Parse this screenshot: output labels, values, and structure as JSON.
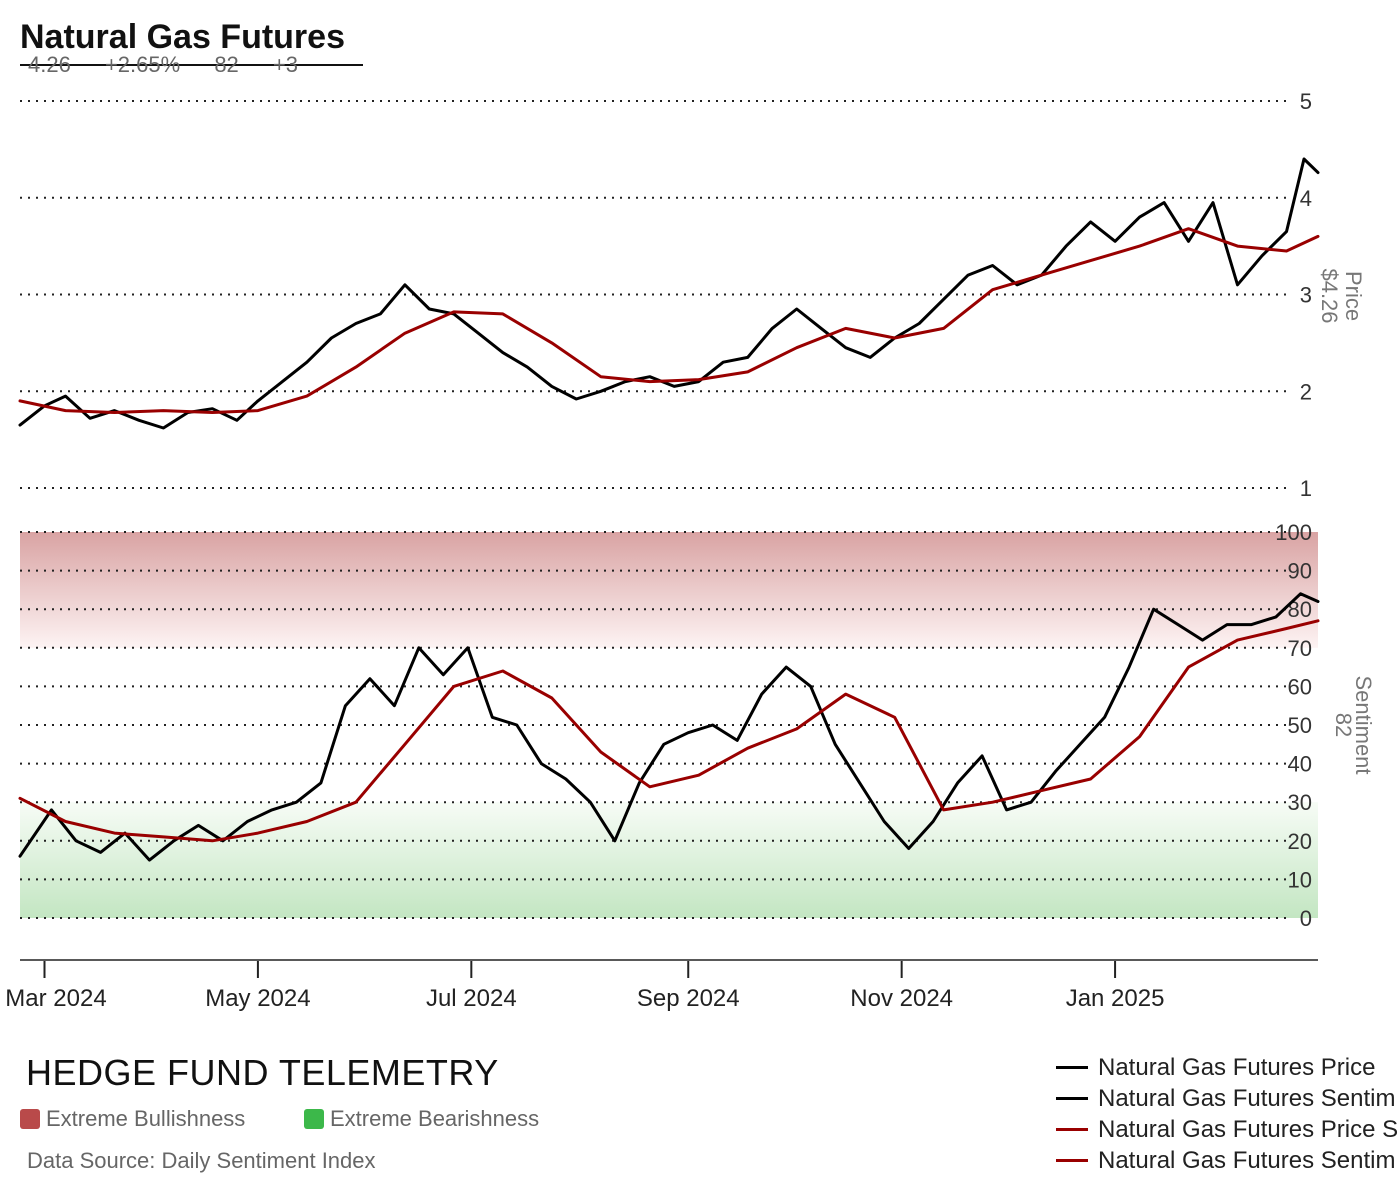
{
  "header": {
    "title": "Natural Gas Futures",
    "stats": [
      "4.26",
      "+2.65%",
      "82",
      "+3"
    ]
  },
  "footer": {
    "brand": "HEDGE FUND TELEMETRY",
    "source": "Data Source: Daily Sentiment Index"
  },
  "zones": [
    {
      "label": "Extreme Bullishness",
      "color": "#b94a4a"
    },
    {
      "label": "Extreme Bearishness",
      "color": "#3cb84a"
    }
  ],
  "chart_data": {
    "type": "line",
    "x_ticks": [
      "Mar 2024",
      "May 2024",
      "Jul 2024",
      "Sep 2024",
      "Nov 2024",
      "Jan 2025"
    ],
    "x_tick_dates": [
      "2024-03-01",
      "2024-05-01",
      "2024-07-01",
      "2024-09-01",
      "2024-11-01",
      "2025-01-01"
    ],
    "x_range": [
      "2024-02-23",
      "2025-02-28"
    ],
    "grid": "dotted horizontal",
    "legend_position": "bottom-right",
    "price_panel": {
      "ylabel": "Price",
      "current_label": "$4.26",
      "ylim": [
        1,
        5
      ],
      "yticks": [
        "1",
        "2",
        "3",
        "4",
        "5"
      ],
      "series": [
        {
          "name": "Natural Gas Futures Price",
          "color": "#000000",
          "points": [
            [
              "2024-02-23",
              1.65
            ],
            [
              "2024-03-01",
              1.85
            ],
            [
              "2024-03-07",
              1.95
            ],
            [
              "2024-03-14",
              1.72
            ],
            [
              "2024-03-21",
              1.8
            ],
            [
              "2024-03-28",
              1.7
            ],
            [
              "2024-04-04",
              1.62
            ],
            [
              "2024-04-11",
              1.78
            ],
            [
              "2024-04-18",
              1.82
            ],
            [
              "2024-04-25",
              1.7
            ],
            [
              "2024-05-01",
              1.9
            ],
            [
              "2024-05-08",
              2.1
            ],
            [
              "2024-05-15",
              2.3
            ],
            [
              "2024-05-22",
              2.55
            ],
            [
              "2024-05-29",
              2.7
            ],
            [
              "2024-06-05",
              2.8
            ],
            [
              "2024-06-12",
              3.1
            ],
            [
              "2024-06-19",
              2.85
            ],
            [
              "2024-06-26",
              2.8
            ],
            [
              "2024-07-03",
              2.6
            ],
            [
              "2024-07-10",
              2.4
            ],
            [
              "2024-07-17",
              2.25
            ],
            [
              "2024-07-24",
              2.05
            ],
            [
              "2024-07-31",
              1.92
            ],
            [
              "2024-08-07",
              2.0
            ],
            [
              "2024-08-14",
              2.1
            ],
            [
              "2024-08-21",
              2.15
            ],
            [
              "2024-08-28",
              2.05
            ],
            [
              "2024-09-04",
              2.1
            ],
            [
              "2024-09-11",
              2.3
            ],
            [
              "2024-09-18",
              2.35
            ],
            [
              "2024-09-25",
              2.65
            ],
            [
              "2024-10-02",
              2.85
            ],
            [
              "2024-10-09",
              2.65
            ],
            [
              "2024-10-16",
              2.45
            ],
            [
              "2024-10-23",
              2.35
            ],
            [
              "2024-10-30",
              2.55
            ],
            [
              "2024-11-06",
              2.7
            ],
            [
              "2024-11-13",
              2.95
            ],
            [
              "2024-11-20",
              3.2
            ],
            [
              "2024-11-27",
              3.3
            ],
            [
              "2024-12-04",
              3.1
            ],
            [
              "2024-12-11",
              3.2
            ],
            [
              "2024-12-18",
              3.5
            ],
            [
              "2024-12-25",
              3.75
            ],
            [
              "2025-01-01",
              3.55
            ],
            [
              "2025-01-08",
              3.8
            ],
            [
              "2025-01-15",
              3.95
            ],
            [
              "2025-01-22",
              3.55
            ],
            [
              "2025-01-29",
              3.95
            ],
            [
              "2025-02-05",
              3.1
            ],
            [
              "2025-02-12",
              3.4
            ],
            [
              "2025-02-19",
              3.65
            ],
            [
              "2025-02-24",
              4.4
            ],
            [
              "2025-02-28",
              4.26
            ]
          ]
        },
        {
          "name": "Natural Gas Futures Price S",
          "color": "#990000",
          "points": [
            [
              "2024-02-23",
              1.9
            ],
            [
              "2024-03-07",
              1.8
            ],
            [
              "2024-03-21",
              1.78
            ],
            [
              "2024-04-04",
              1.8
            ],
            [
              "2024-04-18",
              1.78
            ],
            [
              "2024-05-01",
              1.8
            ],
            [
              "2024-05-15",
              1.95
            ],
            [
              "2024-05-29",
              2.25
            ],
            [
              "2024-06-12",
              2.6
            ],
            [
              "2024-06-26",
              2.82
            ],
            [
              "2024-07-10",
              2.8
            ],
            [
              "2024-07-24",
              2.5
            ],
            [
              "2024-08-07",
              2.15
            ],
            [
              "2024-08-21",
              2.1
            ],
            [
              "2024-09-04",
              2.12
            ],
            [
              "2024-09-18",
              2.2
            ],
            [
              "2024-10-02",
              2.45
            ],
            [
              "2024-10-16",
              2.65
            ],
            [
              "2024-10-30",
              2.55
            ],
            [
              "2024-11-13",
              2.65
            ],
            [
              "2024-11-27",
              3.05
            ],
            [
              "2024-12-11",
              3.2
            ],
            [
              "2024-12-25",
              3.35
            ],
            [
              "2025-01-08",
              3.5
            ],
            [
              "2025-01-22",
              3.68
            ],
            [
              "2025-02-05",
              3.5
            ],
            [
              "2025-02-19",
              3.45
            ],
            [
              "2025-02-28",
              3.6
            ]
          ]
        }
      ]
    },
    "sentiment_panel": {
      "ylabel": "Sentiment",
      "current_label": "82",
      "ylim": [
        0,
        100
      ],
      "yticks": [
        "0",
        "10",
        "20",
        "30",
        "40",
        "50",
        "60",
        "70",
        "80",
        "90",
        "100"
      ],
      "extreme_bullish_band": [
        70,
        100
      ],
      "extreme_bearish_band": [
        0,
        30
      ],
      "series": [
        {
          "name": "Natural Gas Futures Sentim",
          "color": "#000000",
          "points": [
            [
              "2024-02-23",
              16
            ],
            [
              "2024-03-03",
              28
            ],
            [
              "2024-03-10",
              20
            ],
            [
              "2024-03-17",
              17
            ],
            [
              "2024-03-24",
              22
            ],
            [
              "2024-03-31",
              15
            ],
            [
              "2024-04-07",
              20
            ],
            [
              "2024-04-14",
              24
            ],
            [
              "2024-04-21",
              20
            ],
            [
              "2024-04-28",
              25
            ],
            [
              "2024-05-05",
              28
            ],
            [
              "2024-05-12",
              30
            ],
            [
              "2024-05-19",
              35
            ],
            [
              "2024-05-26",
              55
            ],
            [
              "2024-06-02",
              62
            ],
            [
              "2024-06-09",
              55
            ],
            [
              "2024-06-16",
              70
            ],
            [
              "2024-06-23",
              63
            ],
            [
              "2024-06-30",
              70
            ],
            [
              "2024-07-07",
              52
            ],
            [
              "2024-07-14",
              50
            ],
            [
              "2024-07-21",
              40
            ],
            [
              "2024-07-28",
              36
            ],
            [
              "2024-08-04",
              30
            ],
            [
              "2024-08-11",
              20
            ],
            [
              "2024-08-18",
              35
            ],
            [
              "2024-08-25",
              45
            ],
            [
              "2024-09-01",
              48
            ],
            [
              "2024-09-08",
              50
            ],
            [
              "2024-09-15",
              46
            ],
            [
              "2024-09-22",
              58
            ],
            [
              "2024-09-29",
              65
            ],
            [
              "2024-10-06",
              60
            ],
            [
              "2024-10-13",
              45
            ],
            [
              "2024-10-20",
              35
            ],
            [
              "2024-10-27",
              25
            ],
            [
              "2024-11-03",
              18
            ],
            [
              "2024-11-10",
              25
            ],
            [
              "2024-11-17",
              35
            ],
            [
              "2024-11-24",
              42
            ],
            [
              "2024-12-01",
              28
            ],
            [
              "2024-12-08",
              30
            ],
            [
              "2024-12-15",
              38
            ],
            [
              "2024-12-22",
              45
            ],
            [
              "2024-12-29",
              52
            ],
            [
              "2025-01-05",
              65
            ],
            [
              "2025-01-12",
              80
            ],
            [
              "2025-01-19",
              76
            ],
            [
              "2025-01-26",
              72
            ],
            [
              "2025-02-02",
              76
            ],
            [
              "2025-02-09",
              76
            ],
            [
              "2025-02-16",
              78
            ],
            [
              "2025-02-23",
              84
            ],
            [
              "2025-02-28",
              82
            ]
          ]
        },
        {
          "name": "Natural Gas Futures Sentim",
          "color": "#990000",
          "points": [
            [
              "2024-02-23",
              31
            ],
            [
              "2024-03-07",
              25
            ],
            [
              "2024-03-21",
              22
            ],
            [
              "2024-04-04",
              21
            ],
            [
              "2024-04-18",
              20
            ],
            [
              "2024-05-01",
              22
            ],
            [
              "2024-05-15",
              25
            ],
            [
              "2024-05-29",
              30
            ],
            [
              "2024-06-12",
              45
            ],
            [
              "2024-06-26",
              60
            ],
            [
              "2024-07-10",
              64
            ],
            [
              "2024-07-24",
              57
            ],
            [
              "2024-08-07",
              43
            ],
            [
              "2024-08-21",
              34
            ],
            [
              "2024-09-04",
              37
            ],
            [
              "2024-09-18",
              44
            ],
            [
              "2024-10-02",
              49
            ],
            [
              "2024-10-16",
              58
            ],
            [
              "2024-10-30",
              52
            ],
            [
              "2024-11-13",
              28
            ],
            [
              "2024-11-27",
              30
            ],
            [
              "2024-12-11",
              33
            ],
            [
              "2024-12-25",
              36
            ],
            [
              "2025-01-08",
              47
            ],
            [
              "2025-01-22",
              65
            ],
            [
              "2025-02-05",
              72
            ],
            [
              "2025-02-19",
              75
            ],
            [
              "2025-02-28",
              77
            ]
          ]
        }
      ]
    }
  }
}
